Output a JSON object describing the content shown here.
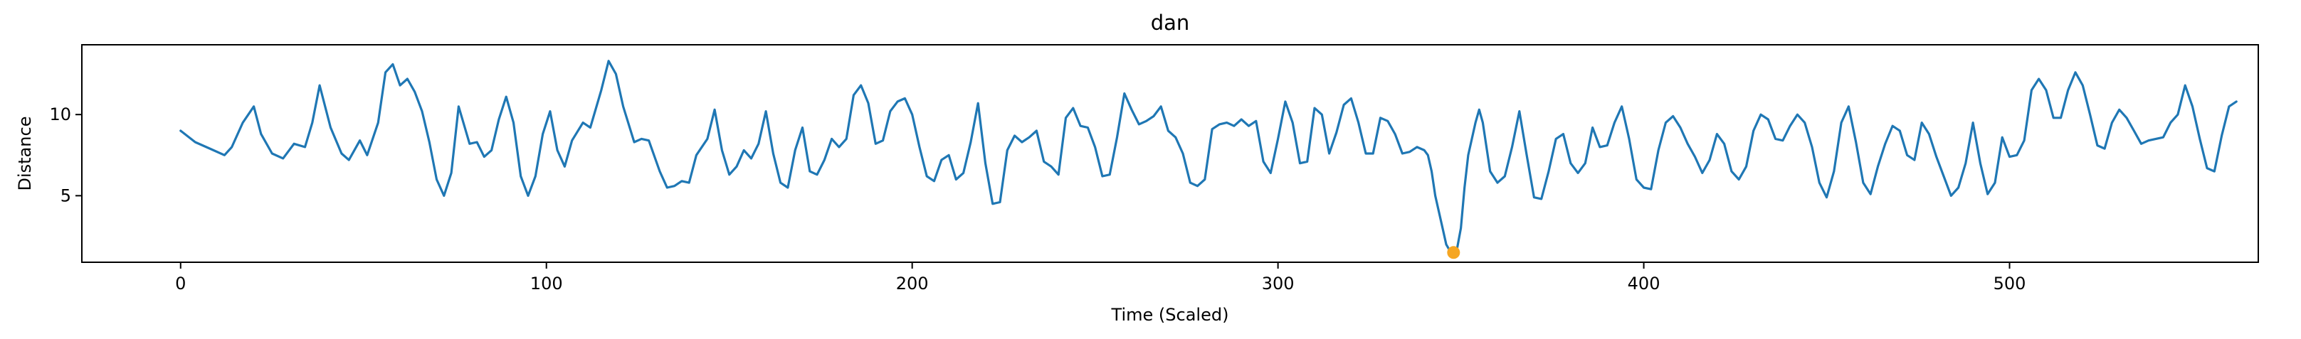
{
  "chart_data": {
    "type": "line",
    "title": "dan",
    "xlabel": "Time (Scaled)",
    "ylabel": "Distance",
    "xlim": [
      -27,
      568
    ],
    "ylim": [
      0.9,
      14.3
    ],
    "xticks": [
      0,
      100,
      200,
      300,
      400,
      500
    ],
    "yticks": [
      5,
      10
    ],
    "grid": false,
    "legend": null,
    "series": [
      {
        "color": "#1f77b4",
        "points": [
          [
            0,
            9.0
          ],
          [
            4,
            8.3
          ],
          [
            8,
            7.9
          ],
          [
            12,
            7.5
          ],
          [
            14,
            8.0
          ],
          [
            17,
            9.5
          ],
          [
            20,
            10.5
          ],
          [
            22,
            8.8
          ],
          [
            25,
            7.6
          ],
          [
            28,
            7.3
          ],
          [
            31,
            8.2
          ],
          [
            34,
            8.0
          ],
          [
            36,
            9.5
          ],
          [
            38,
            11.8
          ],
          [
            41,
            9.2
          ],
          [
            44,
            7.6
          ],
          [
            46,
            7.2
          ],
          [
            49,
            8.4
          ],
          [
            51,
            7.5
          ],
          [
            54,
            9.5
          ],
          [
            56,
            12.6
          ],
          [
            58,
            13.1
          ],
          [
            60,
            11.8
          ],
          [
            62,
            12.2
          ],
          [
            64,
            11.4
          ],
          [
            66,
            10.2
          ],
          [
            68,
            8.3
          ],
          [
            70,
            6.0
          ],
          [
            72,
            5.0
          ],
          [
            74,
            6.4
          ],
          [
            76,
            10.5
          ],
          [
            79,
            8.2
          ],
          [
            81,
            8.3
          ],
          [
            83,
            7.4
          ],
          [
            85,
            7.8
          ],
          [
            87,
            9.7
          ],
          [
            89,
            11.1
          ],
          [
            91,
            9.5
          ],
          [
            93,
            6.2
          ],
          [
            95,
            5.0
          ],
          [
            97,
            6.2
          ],
          [
            99,
            8.8
          ],
          [
            101,
            10.2
          ],
          [
            103,
            7.8
          ],
          [
            105,
            6.8
          ],
          [
            107,
            8.4
          ],
          [
            110,
            9.5
          ],
          [
            112,
            9.2
          ],
          [
            115,
            11.5
          ],
          [
            117,
            13.3
          ],
          [
            119,
            12.5
          ],
          [
            121,
            10.5
          ],
          [
            124,
            8.3
          ],
          [
            126,
            8.5
          ],
          [
            128,
            8.4
          ],
          [
            131,
            6.5
          ],
          [
            133,
            5.5
          ],
          [
            135,
            5.6
          ],
          [
            137,
            5.9
          ],
          [
            139,
            5.8
          ],
          [
            141,
            7.5
          ],
          [
            144,
            8.5
          ],
          [
            146,
            10.3
          ],
          [
            148,
            7.8
          ],
          [
            150,
            6.3
          ],
          [
            152,
            6.8
          ],
          [
            154,
            7.8
          ],
          [
            156,
            7.3
          ],
          [
            158,
            8.2
          ],
          [
            160,
            10.2
          ],
          [
            162,
            7.6
          ],
          [
            164,
            5.8
          ],
          [
            166,
            5.5
          ],
          [
            168,
            7.8
          ],
          [
            170,
            9.2
          ],
          [
            172,
            6.5
          ],
          [
            174,
            6.3
          ],
          [
            176,
            7.2
          ],
          [
            178,
            8.5
          ],
          [
            180,
            8.0
          ],
          [
            182,
            8.5
          ],
          [
            184,
            11.2
          ],
          [
            186,
            11.8
          ],
          [
            188,
            10.7
          ],
          [
            190,
            8.2
          ],
          [
            192,
            8.4
          ],
          [
            194,
            10.2
          ],
          [
            196,
            10.8
          ],
          [
            198,
            11.0
          ],
          [
            200,
            10.0
          ],
          [
            202,
            8.0
          ],
          [
            204,
            6.2
          ],
          [
            206,
            5.9
          ],
          [
            208,
            7.2
          ],
          [
            210,
            7.5
          ],
          [
            212,
            6.0
          ],
          [
            214,
            6.4
          ],
          [
            216,
            8.3
          ],
          [
            218,
            10.7
          ],
          [
            220,
            7.0
          ],
          [
            222,
            4.5
          ],
          [
            224,
            4.6
          ],
          [
            226,
            7.8
          ],
          [
            228,
            8.7
          ],
          [
            230,
            8.3
          ],
          [
            232,
            8.6
          ],
          [
            234,
            9.0
          ],
          [
            236,
            7.1
          ],
          [
            238,
            6.8
          ],
          [
            240,
            6.3
          ],
          [
            242,
            9.8
          ],
          [
            244,
            10.4
          ],
          [
            246,
            9.3
          ],
          [
            248,
            9.2
          ],
          [
            250,
            8.0
          ],
          [
            252,
            6.2
          ],
          [
            254,
            6.3
          ],
          [
            256,
            8.6
          ],
          [
            258,
            11.3
          ],
          [
            260,
            10.3
          ],
          [
            262,
            9.4
          ],
          [
            264,
            9.6
          ],
          [
            266,
            9.9
          ],
          [
            268,
            10.5
          ],
          [
            270,
            9.0
          ],
          [
            272,
            8.6
          ],
          [
            274,
            7.6
          ],
          [
            276,
            5.8
          ],
          [
            278,
            5.6
          ],
          [
            280,
            6.0
          ],
          [
            282,
            9.1
          ],
          [
            284,
            9.4
          ],
          [
            286,
            9.5
          ],
          [
            288,
            9.3
          ],
          [
            290,
            9.7
          ],
          [
            292,
            9.3
          ],
          [
            294,
            9.6
          ],
          [
            296,
            7.1
          ],
          [
            298,
            6.4
          ],
          [
            300,
            8.5
          ],
          [
            302,
            10.8
          ],
          [
            304,
            9.5
          ],
          [
            306,
            7.0
          ],
          [
            308,
            7.1
          ],
          [
            310,
            10.4
          ],
          [
            312,
            10.0
          ],
          [
            314,
            7.6
          ],
          [
            316,
            8.9
          ],
          [
            318,
            10.6
          ],
          [
            320,
            11.0
          ],
          [
            322,
            9.5
          ],
          [
            324,
            7.6
          ],
          [
            326,
            7.6
          ],
          [
            328,
            9.8
          ],
          [
            330,
            9.6
          ],
          [
            332,
            8.8
          ],
          [
            334,
            7.6
          ],
          [
            336,
            7.7
          ],
          [
            338,
            8.0
          ],
          [
            340,
            7.8
          ],
          [
            341,
            7.5
          ],
          [
            342,
            6.5
          ],
          [
            343,
            5.0
          ],
          [
            345,
            3.0
          ],
          [
            346,
            2.0
          ],
          [
            347,
            1.6
          ],
          [
            348,
            1.5
          ],
          [
            349,
            1.8
          ],
          [
            350,
            3.0
          ],
          [
            351,
            5.5
          ],
          [
            352,
            7.5
          ],
          [
            354,
            9.5
          ],
          [
            355,
            10.3
          ],
          [
            356,
            9.5
          ],
          [
            358,
            6.5
          ],
          [
            360,
            5.8
          ],
          [
            362,
            6.2
          ],
          [
            364,
            8.0
          ],
          [
            366,
            10.2
          ],
          [
            368,
            7.5
          ],
          [
            370,
            4.9
          ],
          [
            372,
            4.8
          ],
          [
            374,
            6.5
          ],
          [
            376,
            8.5
          ],
          [
            378,
            8.8
          ],
          [
            380,
            7.0
          ],
          [
            382,
            6.4
          ],
          [
            384,
            7.0
          ],
          [
            386,
            9.2
          ],
          [
            388,
            8.0
          ],
          [
            390,
            8.1
          ],
          [
            392,
            9.5
          ],
          [
            394,
            10.5
          ],
          [
            396,
            8.5
          ],
          [
            398,
            6.0
          ],
          [
            400,
            5.5
          ],
          [
            402,
            5.4
          ],
          [
            404,
            7.8
          ],
          [
            406,
            9.5
          ],
          [
            408,
            9.9
          ],
          [
            410,
            9.2
          ],
          [
            412,
            8.2
          ],
          [
            414,
            7.4
          ],
          [
            416,
            6.4
          ],
          [
            418,
            7.2
          ],
          [
            420,
            8.8
          ],
          [
            422,
            8.2
          ],
          [
            424,
            6.5
          ],
          [
            426,
            6.0
          ],
          [
            428,
            6.8
          ],
          [
            430,
            9.0
          ],
          [
            432,
            10.0
          ],
          [
            434,
            9.7
          ],
          [
            436,
            8.5
          ],
          [
            438,
            8.4
          ],
          [
            440,
            9.3
          ],
          [
            442,
            10.0
          ],
          [
            444,
            9.5
          ],
          [
            446,
            8.0
          ],
          [
            448,
            5.8
          ],
          [
            450,
            4.9
          ],
          [
            452,
            6.5
          ],
          [
            454,
            9.5
          ],
          [
            456,
            10.5
          ],
          [
            458,
            8.3
          ],
          [
            460,
            5.8
          ],
          [
            462,
            5.1
          ],
          [
            464,
            6.8
          ],
          [
            466,
            8.2
          ],
          [
            468,
            9.3
          ],
          [
            470,
            9.0
          ],
          [
            472,
            7.5
          ],
          [
            474,
            7.2
          ],
          [
            476,
            9.5
          ],
          [
            478,
            8.8
          ],
          [
            480,
            7.4
          ],
          [
            482,
            6.2
          ],
          [
            484,
            5.0
          ],
          [
            486,
            5.5
          ],
          [
            488,
            7.0
          ],
          [
            490,
            9.5
          ],
          [
            492,
            7.0
          ],
          [
            494,
            5.1
          ],
          [
            496,
            5.8
          ],
          [
            498,
            8.6
          ],
          [
            500,
            7.4
          ],
          [
            502,
            7.5
          ],
          [
            504,
            8.4
          ],
          [
            506,
            11.5
          ],
          [
            508,
            12.2
          ],
          [
            510,
            11.5
          ],
          [
            512,
            9.8
          ],
          [
            514,
            9.8
          ],
          [
            516,
            11.5
          ],
          [
            518,
            12.6
          ],
          [
            520,
            11.8
          ],
          [
            522,
            10.0
          ],
          [
            524,
            8.1
          ],
          [
            526,
            7.9
          ],
          [
            528,
            9.5
          ],
          [
            530,
            10.3
          ],
          [
            532,
            9.8
          ],
          [
            534,
            9.0
          ],
          [
            536,
            8.2
          ],
          [
            538,
            8.4
          ],
          [
            540,
            8.5
          ],
          [
            542,
            8.6
          ],
          [
            544,
            9.5
          ],
          [
            546,
            10.0
          ],
          [
            548,
            11.8
          ],
          [
            550,
            10.5
          ],
          [
            552,
            8.5
          ],
          [
            554,
            6.7
          ],
          [
            556,
            6.5
          ],
          [
            558,
            8.7
          ],
          [
            560,
            10.5
          ],
          [
            562,
            10.8
          ]
        ]
      }
    ],
    "highlight_point": {
      "x": 348,
      "y": 1.5,
      "color": "#f5a623"
    }
  }
}
